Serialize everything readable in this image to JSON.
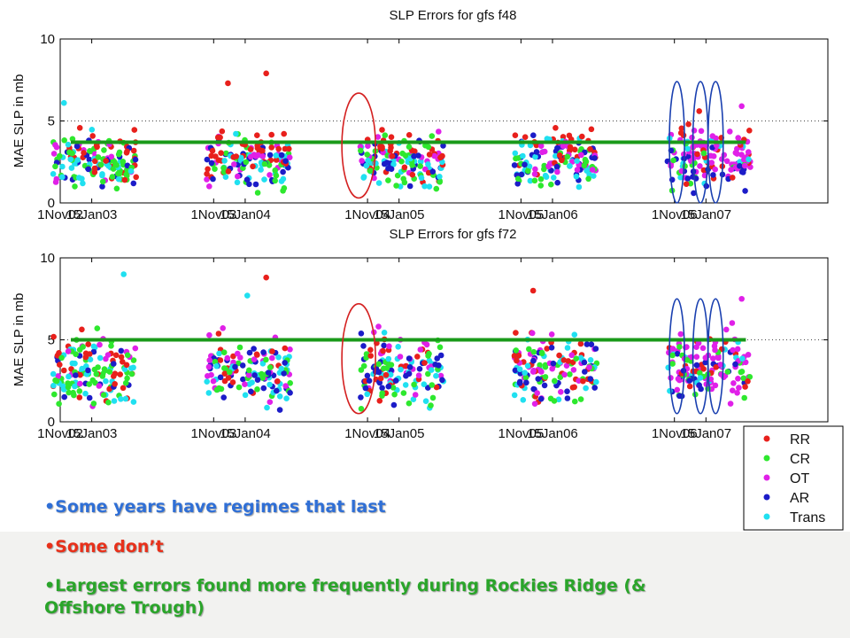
{
  "chart_data": [
    {
      "type": "scatter",
      "title": "SLP Errors for gfs f48",
      "ylabel": "MAE SLP in mb",
      "ylim": [
        0,
        10
      ],
      "yticks": [
        "0",
        "5",
        "10"
      ],
      "xticks": [
        "1Nov02",
        "15Jan03",
        "1Nov03",
        "15Jan04",
        "1Nov04",
        "15Jan05",
        "1Nov05",
        "15Jan06",
        "1Nov06",
        "15Jan07"
      ],
      "xdates": [
        "2002-11-01",
        "2003-01-15",
        "2003-11-01",
        "2004-01-15",
        "2004-11-01",
        "2005-01-15",
        "2005-11-01",
        "2006-01-15",
        "2006-11-01",
        "2007-01-15"
      ],
      "xlim": [
        "2002-11-01",
        "2007-11-01"
      ],
      "mean_line": 3.7,
      "mean_line_color": "#1a9a1a",
      "highlight_ellipses": [
        {
          "color": "#d42020",
          "from": "2004-09-01",
          "to": "2004-11-20",
          "ylow": 0.3,
          "yhigh": 6.7
        },
        {
          "color": "#1a40b0",
          "from": "2006-10-20",
          "to": "2006-11-25",
          "ylow": 0.0,
          "yhigh": 7.4
        },
        {
          "color": "#1a40b0",
          "from": "2006-12-15",
          "to": "2007-01-20",
          "ylow": 0.0,
          "yhigh": 7.4
        },
        {
          "color": "#1a40b0",
          "from": "2007-01-20",
          "to": "2007-02-25",
          "ylow": 0.0,
          "yhigh": 7.4
        }
      ],
      "outliers": [
        {
          "class": "RR",
          "date": "2004-03-05",
          "value": 7.9
        },
        {
          "class": "RR",
          "date": "2003-12-05",
          "value": 7.3
        },
        {
          "class": "Trans",
          "date": "2002-11-10",
          "value": 6.1
        },
        {
          "class": "RR",
          "date": "2006-12-30",
          "value": 5.6
        },
        {
          "class": "OT",
          "date": "2007-04-10",
          "value": 5.9
        }
      ]
    },
    {
      "type": "scatter",
      "title": "SLP Errors for gfs f72",
      "ylabel": "MAE SLP in mb",
      "ylim": [
        0,
        10
      ],
      "yticks": [
        "0",
        "5",
        "10"
      ],
      "xticks": [
        "1Nov02",
        "15Jan03",
        "1Nov03",
        "15Jan04",
        "1Nov04",
        "15Jan05",
        "1Nov05",
        "15Jan06",
        "1Nov06",
        "15Jan07"
      ],
      "xdates": [
        "2002-11-01",
        "2003-01-15",
        "2003-11-01",
        "2004-01-15",
        "2004-11-01",
        "2005-01-15",
        "2005-11-01",
        "2006-01-15",
        "2006-11-01",
        "2007-01-15"
      ],
      "xlim": [
        "2002-11-01",
        "2007-11-01"
      ],
      "mean_line": 5.0,
      "mean_line_color": "#1a9a1a",
      "highlight_ellipses": [
        {
          "color": "#d42020",
          "from": "2004-09-01",
          "to": "2004-11-20",
          "ylow": 0.5,
          "yhigh": 7.2
        },
        {
          "color": "#1a40b0",
          "from": "2006-10-20",
          "to": "2006-11-25",
          "ylow": 0.5,
          "yhigh": 7.5
        },
        {
          "color": "#1a40b0",
          "from": "2006-12-15",
          "to": "2007-01-20",
          "ylow": 0.5,
          "yhigh": 7.5
        },
        {
          "color": "#1a40b0",
          "from": "2007-01-20",
          "to": "2007-02-25",
          "ylow": 0.5,
          "yhigh": 7.5
        }
      ],
      "outliers": [
        {
          "class": "RR",
          "date": "2004-03-05",
          "value": 8.8
        },
        {
          "class": "Trans",
          "date": "2003-04-01",
          "value": 9.0
        },
        {
          "class": "RR",
          "date": "2005-11-30",
          "value": 8.0
        },
        {
          "class": "OT",
          "date": "2007-04-10",
          "value": 7.5
        },
        {
          "class": "Trans",
          "date": "2004-01-20",
          "value": 7.7
        }
      ]
    }
  ],
  "legend": {
    "items": [
      {
        "label": "RR",
        "color": "#e8201c"
      },
      {
        "label": "CR",
        "color": "#2ee82e"
      },
      {
        "label": "OT",
        "color": "#e020e8"
      },
      {
        "label": "AR",
        "color": "#1c1cc8"
      },
      {
        "label": "Trans",
        "color": "#20e0f0"
      }
    ]
  },
  "bullets": [
    "•Some years have regimes that last",
    "•Some don’t",
    "•Largest errors found more frequently during Rockies Ridge (& Offshore Trough)"
  ],
  "colors": {
    "background": "#ffffff",
    "bottom_band": "#f2f2f0"
  }
}
